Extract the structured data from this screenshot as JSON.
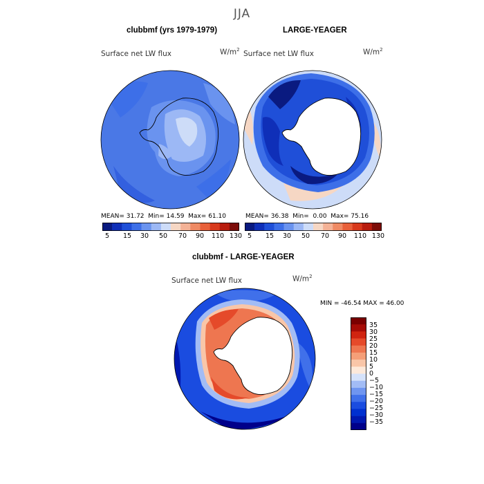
{
  "season": "JJA",
  "panel_left": {
    "title": "clubbmf (yrs 1979-1979)",
    "variable": "Surface net LW flux",
    "units": "W/m",
    "units_exp": "2",
    "stats": {
      "mean_label": "MEAN=",
      "mean": "31.72",
      "min_label": "Min=",
      "min": "14.59",
      "max_label": "Max=",
      "max": "61.10"
    }
  },
  "panel_right": {
    "title": "LARGE-YEAGER",
    "variable": "Surface net LW flux",
    "units": "W/m",
    "units_exp": "2",
    "stats": {
      "mean_label": "MEAN=",
      "mean": "36.38",
      "min_label": "Min=",
      "min": "0.00",
      "max_label": "Max=",
      "max": "75.16"
    }
  },
  "panel_diff": {
    "title": "clubbmf - LARGE-YEAGER",
    "variable": "Surface net LW flux",
    "units": "W/m",
    "units_exp": "2",
    "stats_text": "MIN = -46.54  MAX =  46.00"
  },
  "colors": {
    "land": "#ffffff",
    "coast": "#000000",
    "abs_scale": [
      "#0a1a80",
      "#0f2fb8",
      "#1f4fd8",
      "#3d6fe8",
      "#6a93ef",
      "#9cb8f5",
      "#cddcf8",
      "#f6d7c4",
      "#f4b296",
      "#ef8a64",
      "#e8603a",
      "#d8391c",
      "#b81c0e",
      "#7c0c08"
    ],
    "diff_scale": [
      "#00008a",
      "#0018b0",
      "#0030d0",
      "#1a4ce0",
      "#4070ea",
      "#6f95f0",
      "#a2bcf5",
      "#d5e2fa",
      "#fde9da",
      "#f9c6a8",
      "#f59f78",
      "#ee7650",
      "#e54a2a",
      "#d02410",
      "#a60c06",
      "#7a0000"
    ]
  },
  "chart_data": [
    {
      "type": "heatmap",
      "title": "clubbmf (yrs 1979-1979)",
      "variable": "Surface net LW flux",
      "units": "W/m2",
      "projection": "south polar stereographic",
      "mean": 31.72,
      "min": 14.59,
      "max": 61.1,
      "colorbar_levels": [
        5,
        10,
        15,
        20,
        30,
        40,
        50,
        60,
        70,
        80,
        90,
        100,
        110,
        120,
        130
      ],
      "colorbar_tick_labels": [
        "5",
        "15",
        "30",
        "50",
        "70",
        "90",
        "110",
        "130"
      ]
    },
    {
      "type": "heatmap",
      "title": "LARGE-YEAGER",
      "variable": "Surface net LW flux",
      "units": "W/m2",
      "projection": "south polar stereographic",
      "mean": 36.38,
      "min": 0.0,
      "max": 75.16,
      "colorbar_levels": [
        5,
        10,
        15,
        20,
        30,
        40,
        50,
        60,
        70,
        80,
        90,
        100,
        110,
        120,
        130
      ],
      "colorbar_tick_labels": [
        "5",
        "15",
        "30",
        "50",
        "70",
        "90",
        "110",
        "130"
      ]
    },
    {
      "type": "heatmap",
      "title": "clubbmf - LARGE-YEAGER",
      "variable": "Surface net LW flux",
      "units": "W/m2",
      "projection": "south polar stereographic",
      "min": -46.54,
      "max": 46.0,
      "colorbar_levels": [
        -35,
        -30,
        -25,
        -20,
        -15,
        -10,
        -5,
        0,
        5,
        10,
        15,
        20,
        25,
        30,
        35
      ],
      "colorbar_tick_labels": [
        "35",
        "30",
        "25",
        "20",
        "15",
        "10",
        "5",
        "0",
        "−5",
        "−10",
        "−15",
        "−20",
        "−25",
        "−30",
        "−35"
      ]
    }
  ]
}
